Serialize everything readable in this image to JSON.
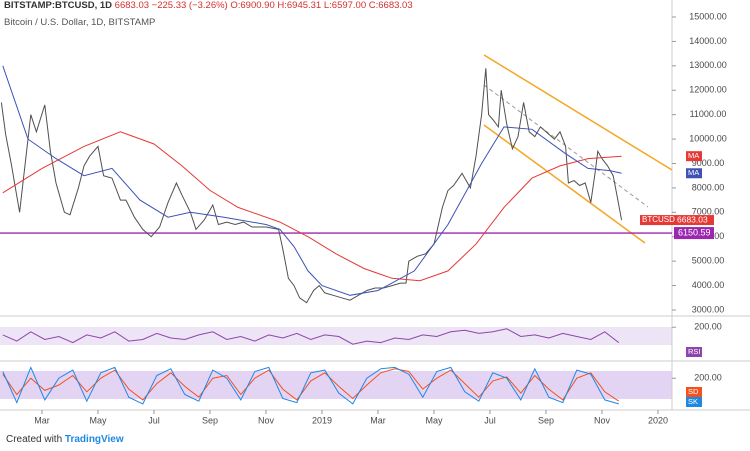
{
  "header": {
    "symbol": "BITSTAMP:BTCUSD, 1D",
    "last": "6683.03",
    "change": "−225.33 (−3.26%)",
    "open": "O:6900.90",
    "high": "H:6945.31",
    "low": "L:6597.00",
    "close": "C:6683.03",
    "subtitle": "Bitcoin / U.S. Dollar, 1D, BITSTAMP"
  },
  "footer": {
    "created": "Created with",
    "brand": "TradingView"
  },
  "chart_data": [
    {
      "type": "line",
      "xlim": [
        0.5,
        24.5
      ],
      "ylim": [
        2795,
        15696
      ],
      "xticks": [
        {
          "value": 2,
          "label": "Mar"
        },
        {
          "value": 4,
          "label": "May"
        },
        {
          "value": 6,
          "label": "Jul"
        },
        {
          "value": 8,
          "label": "Sep"
        },
        {
          "value": 10,
          "label": "Nov"
        },
        {
          "value": 12,
          "label": "2019"
        },
        {
          "value": 14,
          "label": "Mar"
        },
        {
          "value": 16,
          "label": "May"
        },
        {
          "value": 18,
          "label": "Jul"
        },
        {
          "value": 20,
          "label": "Sep"
        },
        {
          "value": 22,
          "label": "Nov"
        },
        {
          "value": 24,
          "label": "2020"
        }
      ],
      "yticks": [
        {
          "value": 15000,
          "label": "15000.00"
        },
        {
          "value": 14000,
          "label": "14000.00"
        },
        {
          "value": 13000,
          "label": "13000.00"
        },
        {
          "value": 12000,
          "label": "12000.00"
        },
        {
          "value": 11000,
          "label": "11000.00"
        },
        {
          "value": 10000,
          "label": "10000.00"
        },
        {
          "value": 9000,
          "label": "9000.00"
        },
        {
          "value": 8000,
          "label": "8000.00"
        },
        {
          "value": 7000,
          "label": "7000.00"
        },
        {
          "value": 6000,
          "label": "6000.00"
        },
        {
          "value": 5000,
          "label": "5000.00"
        },
        {
          "value": 4000,
          "label": "4000.00"
        },
        {
          "value": 3000,
          "label": "3000.00"
        }
      ],
      "hline": {
        "value": 6150.59,
        "color": "#9c27b0"
      },
      "series": [
        {
          "name": "BTCUSD",
          "color": "#505050",
          "x": [
            0.55,
            0.7,
            0.9,
            1.2,
            1.35,
            1.6,
            1.8,
            2.1,
            2.3,
            2.5,
            2.8,
            3.0,
            3.3,
            3.5,
            3.7,
            4.0,
            4.2,
            4.5,
            4.8,
            5.0,
            5.3,
            5.6,
            5.9,
            6.2,
            6.5,
            6.8,
            7.0,
            7.3,
            7.5,
            7.8,
            8.1,
            8.3,
            8.6,
            8.9,
            9.2,
            9.5,
            10.0,
            10.45,
            10.6,
            10.8,
            11.0,
            11.2,
            11.45,
            11.7,
            11.9,
            12.1,
            12.4,
            12.7,
            13.0,
            13.3,
            13.6,
            13.9,
            14.2,
            14.5,
            14.8,
            15.0,
            15.1,
            15.4,
            15.7,
            16.0,
            16.3,
            16.5,
            16.7,
            17.0,
            17.3,
            17.5,
            17.7,
            17.85,
            17.95,
            18.1,
            18.3,
            18.4,
            18.6,
            18.8,
            19.0,
            19.2,
            19.4,
            19.6,
            19.8,
            20.0,
            20.3,
            20.5,
            20.7,
            20.8,
            21.0,
            21.2,
            21.4,
            21.6,
            21.75,
            21.85,
            22.0,
            22.2,
            22.4,
            22.55,
            22.7
          ],
          "values": [
            11500,
            10200,
            9000,
            7000,
            8500,
            11000,
            10300,
            11400,
            9500,
            8200,
            7000,
            6900,
            8000,
            8900,
            9300,
            9700,
            8500,
            8400,
            7500,
            7500,
            6800,
            6300,
            6000,
            6400,
            7400,
            8200,
            7700,
            7000,
            6300,
            6700,
            7300,
            6500,
            6600,
            6500,
            6600,
            6400,
            6400,
            6300,
            5500,
            4300,
            4000,
            3500,
            3300,
            3800,
            4000,
            3700,
            3600,
            3500,
            3400,
            3600,
            3800,
            3900,
            3900,
            4000,
            4100,
            4100,
            5000,
            5200,
            5300,
            5700,
            7200,
            7900,
            8100,
            8600,
            8000,
            9300,
            11000,
            12900,
            11000,
            10800,
            10500,
            12000,
            10600,
            9600,
            10100,
            11500,
            10300,
            10100,
            10500,
            10300,
            10000,
            10300,
            9700,
            8200,
            8300,
            8100,
            8200,
            7400,
            8600,
            9500,
            9200,
            8900,
            8500,
            7600,
            6683.03
          ]
        },
        {
          "name": "MA",
          "color": "#e53935",
          "x": [
            0.6,
            2,
            3.5,
            4.8,
            6,
            7,
            8,
            9,
            10.5,
            11.5,
            12.5,
            13.5,
            14.5,
            15.5,
            16.5,
            17.5,
            18.5,
            19.5,
            20.5,
            21.5,
            22.7
          ],
          "values": [
            7800,
            8800,
            9700,
            10300,
            9800,
            8900,
            7900,
            7200,
            6600,
            6000,
            5300,
            4700,
            4300,
            4200,
            4600,
            5700,
            7200,
            8400,
            8900,
            9200,
            9300
          ]
        },
        {
          "name": "MA",
          "color": "#3f51b5",
          "x": [
            0.6,
            1.5,
            2.5,
            3.5,
            4.5,
            5.5,
            6.5,
            7.3,
            8.5,
            10,
            10.5,
            11,
            11.5,
            12,
            13,
            14,
            15.3,
            16.5,
            17.7,
            18.5,
            19.5,
            20.7,
            21.5,
            22.3,
            22.7
          ],
          "values": [
            13000,
            10000,
            9200,
            8500,
            8800,
            7500,
            6800,
            7000,
            6800,
            6500,
            6300,
            5600,
            4600,
            4000,
            3600,
            3800,
            4600,
            6500,
            9000,
            10500,
            10400,
            9400,
            8800,
            8700,
            8600
          ]
        }
      ]
    },
    {
      "type": "line",
      "xlim": [
        0.5,
        24.5
      ],
      "ylim": [
        0,
        260
      ],
      "yticks": [
        {
          "value": 200,
          "label": "200.00"
        }
      ],
      "x": [
        0.6,
        1.1,
        1.6,
        2.1,
        2.6,
        3.1,
        3.6,
        4.1,
        4.6,
        5.1,
        5.6,
        6.1,
        6.6,
        7.1,
        7.6,
        8.1,
        8.6,
        9.1,
        9.6,
        10.1,
        10.6,
        11.1,
        11.6,
        12.1,
        12.6,
        13.1,
        13.6,
        14.1,
        14.6,
        15.1,
        15.6,
        16.1,
        16.6,
        17.1,
        17.6,
        18.1,
        18.6,
        19.1,
        19.6,
        20.1,
        20.6,
        21.1,
        21.6,
        22.1,
        22.6
      ],
      "series": [
        {
          "name": "RSI",
          "color": "#8e44ad",
          "values": [
            150,
            110,
            170,
            120,
            140,
            100,
            150,
            130,
            170,
            110,
            120,
            160,
            130,
            120,
            150,
            170,
            120,
            140,
            110,
            150,
            130,
            160,
            120,
            150,
            140,
            90,
            110,
            100,
            130,
            120,
            150,
            140,
            170,
            180,
            160,
            170,
            190,
            140,
            150,
            130,
            160,
            140,
            120,
            170,
            100
          ]
        }
      ]
    },
    {
      "type": "line",
      "xlim": [
        0.5,
        24.5
      ],
      "ylim": [
        -20,
        320
      ],
      "yticks": [
        {
          "value": 200,
          "label": "200.00"
        }
      ],
      "x": [
        0.6,
        1.1,
        1.6,
        2.1,
        2.6,
        3.1,
        3.6,
        4.1,
        4.6,
        5.1,
        5.6,
        6.1,
        6.6,
        7.1,
        7.6,
        8.1,
        8.6,
        9.1,
        9.6,
        10.1,
        10.6,
        11.1,
        11.6,
        12.1,
        12.6,
        13.1,
        13.6,
        14.1,
        14.6,
        15.1,
        15.6,
        16.1,
        16.6,
        17.1,
        17.6,
        18.1,
        18.6,
        19.1,
        19.6,
        20.1,
        20.6,
        21.1,
        21.6,
        22.1,
        22.6
      ],
      "series": [
        {
          "name": "SD",
          "color": "#f4511e",
          "values": [
            230,
            80,
            200,
            110,
            150,
            220,
            100,
            200,
            260,
            120,
            40,
            160,
            240,
            140,
            60,
            200,
            220,
            80,
            200,
            260,
            120,
            40,
            180,
            240,
            140,
            50,
            150,
            240,
            270,
            250,
            120,
            200,
            260,
            160,
            60,
            180,
            210,
            90,
            220,
            120,
            40,
            200,
            240,
            100,
            30
          ]
        },
        {
          "name": "SK",
          "color": "#1e88e5",
          "values": [
            250,
            20,
            280,
            40,
            200,
            260,
            30,
            240,
            280,
            60,
            10,
            220,
            270,
            80,
            30,
            260,
            200,
            40,
            250,
            280,
            50,
            20,
            240,
            260,
            90,
            10,
            200,
            270,
            280,
            230,
            60,
            250,
            280,
            100,
            30,
            240,
            200,
            40,
            270,
            60,
            20,
            260,
            230,
            40,
            10
          ]
        }
      ]
    }
  ]
}
